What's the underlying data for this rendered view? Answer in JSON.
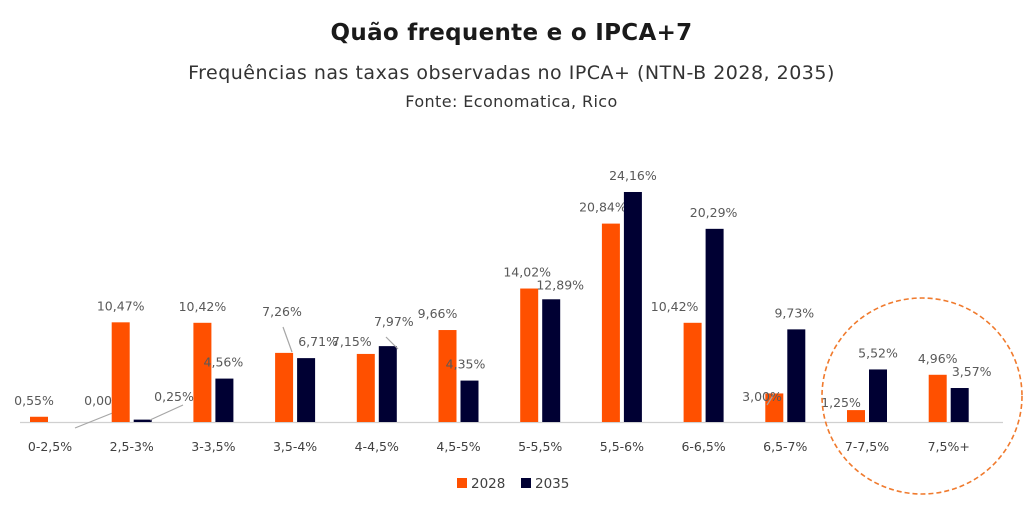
{
  "header": {
    "title": "Quão frequente e o IPCA+7",
    "subtitle": "Frequências nas taxas observadas no IPCA+ (NTN-B 2028, 2035)",
    "source": "Fonte: Economatica, Rico"
  },
  "colors": {
    "series_2028": "#FF5000",
    "series_2035": "#000033",
    "highlight_circle": "#F07A2D",
    "axis": "#d0d0d0"
  },
  "chart_data": {
    "type": "bar",
    "title": "Quão frequente e o IPCA+7",
    "subtitle": "Frequências nas taxas observadas no IPCA+ (NTN-B 2028, 2035)",
    "xlabel": "",
    "ylabel": "",
    "ylim": [
      0,
      25
    ],
    "grid": false,
    "legend_position": "bottom",
    "categories": [
      "0-2,5%",
      "2,5-3%",
      "3-3,5%",
      "3,5-4%",
      "4-4,5%",
      "4,5-5%",
      "5-5,5%",
      "5,5-6%",
      "6-6,5%",
      "6,5-7%",
      "7-7,5%",
      "7,5%+"
    ],
    "series": [
      {
        "name": "2028",
        "values": [
          0.55,
          10.47,
          10.42,
          7.26,
          7.15,
          9.66,
          14.02,
          20.84,
          10.42,
          3.0,
          1.25,
          4.96
        ],
        "labels": [
          "0,55%",
          "10,47%",
          "10,42%",
          "7,26%",
          "7,15%",
          "9,66%",
          "14,02%",
          "20,84%",
          "10,42%",
          "3,00%",
          "1,25%",
          "4,96%"
        ]
      },
      {
        "name": "2035",
        "values": [
          0.0,
          0.25,
          4.56,
          6.71,
          7.97,
          4.35,
          12.89,
          24.16,
          20.29,
          9.73,
          5.52,
          3.57
        ],
        "labels": [
          "0,00%",
          "0,25%",
          "4,56%",
          "6,71%",
          "7,97%",
          "4,35%",
          "12,89%",
          "24,16%",
          "20,29%",
          "9,73%",
          "5,52%",
          "3,57%"
        ]
      }
    ],
    "annotations": [
      {
        "type": "dashed-circle",
        "highlights": [
          "7-7,5%",
          "7,5%+"
        ]
      }
    ]
  }
}
